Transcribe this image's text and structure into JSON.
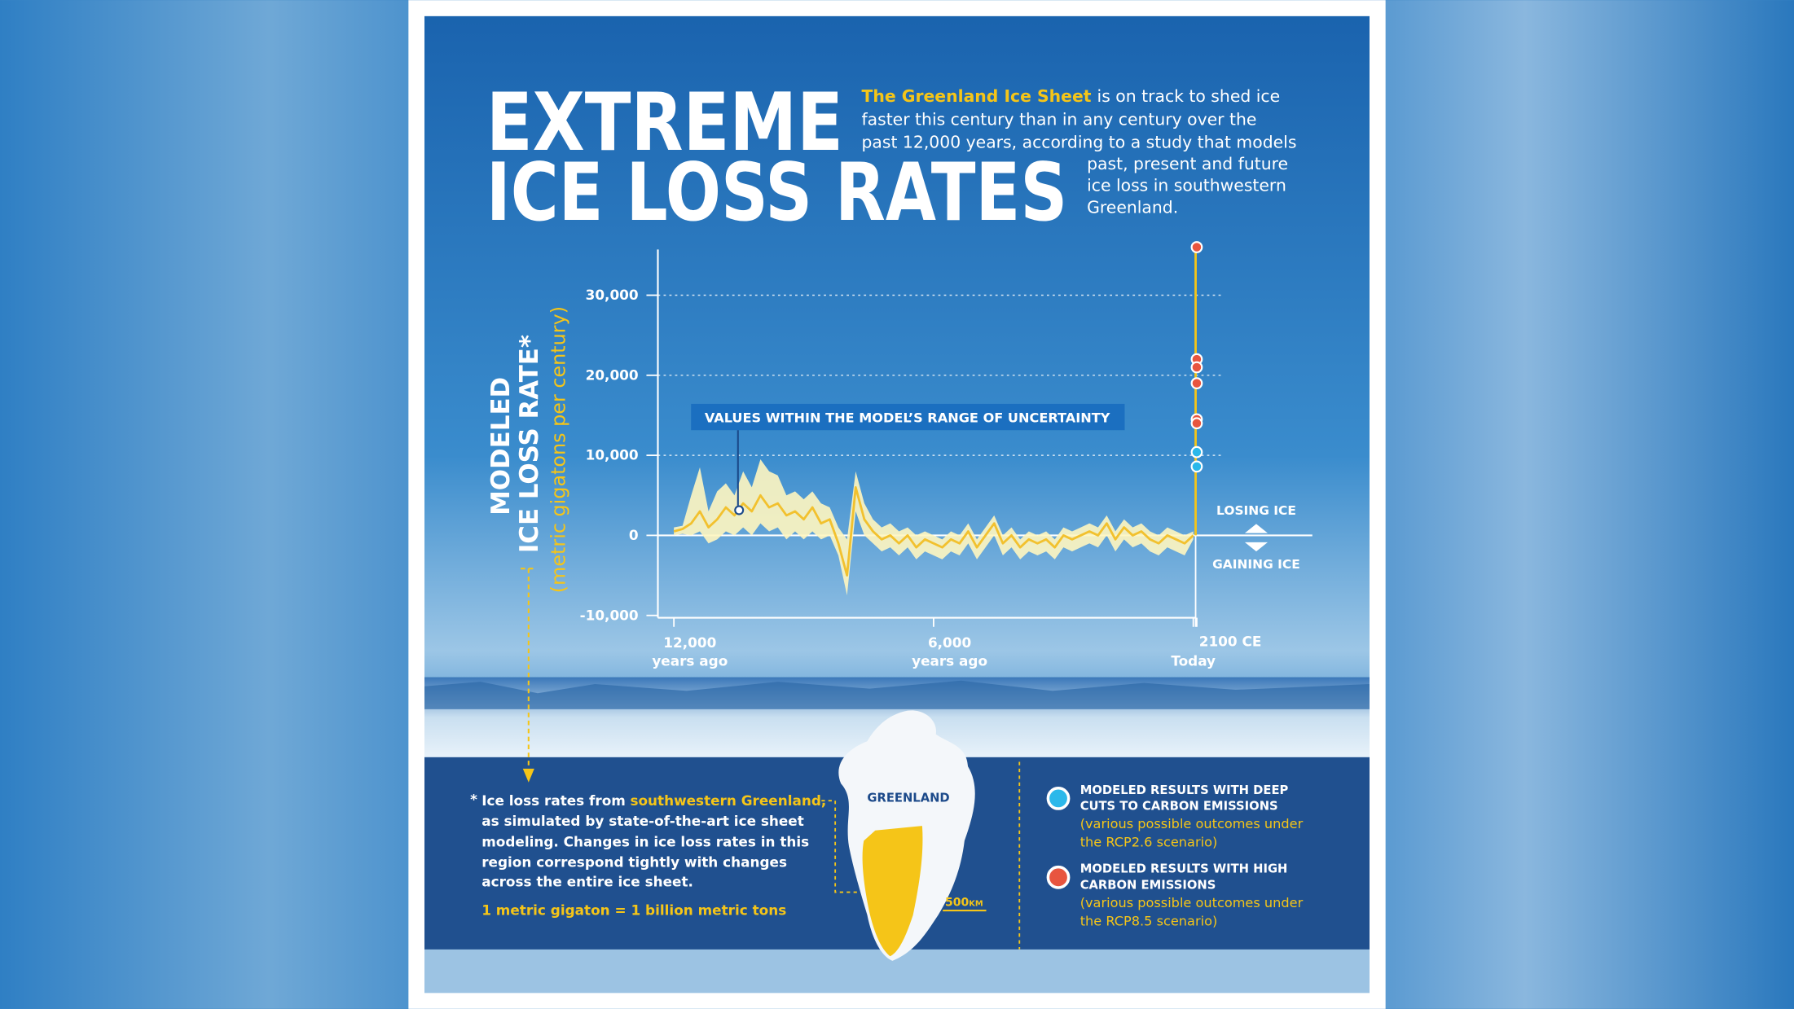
{
  "header": {
    "title_line1": "EXTREME",
    "title_line2": "ICE LOSS RATES",
    "intro_lead": "The Greenland Ice Sheet",
    "intro_lines": [
      "is on track to shed ice",
      "faster this century than in any century over the",
      "past 12,000 years, according to a study that models",
      "past, present and future",
      "ice loss in southwestern",
      "Greenland."
    ]
  },
  "chart_data": {
    "type": "line",
    "y_label": [
      "MODELED",
      "ICE LOSS RATE*"
    ],
    "y_unit": "(metric gigatons per century)",
    "x_unit": "years ago",
    "x": [
      12000,
      11800,
      11600,
      11400,
      11200,
      11000,
      10800,
      10600,
      10400,
      10200,
      10000,
      9800,
      9600,
      9400,
      9200,
      9000,
      8800,
      8600,
      8400,
      8200,
      8000,
      7800,
      7600,
      7400,
      7200,
      7000,
      6800,
      6600,
      6400,
      6200,
      6000,
      5800,
      5600,
      5400,
      5200,
      5000,
      4800,
      4600,
      4400,
      4200,
      4000,
      3800,
      3600,
      3400,
      3200,
      3000,
      2800,
      2600,
      2400,
      2200,
      2000,
      1800,
      1600,
      1400,
      1200,
      1000,
      800,
      600,
      400,
      200,
      0
    ],
    "series": [
      {
        "color": "#f2c12e",
        "values": [
          500,
          800,
          1500,
          3000,
          1000,
          2000,
          3500,
          2500,
          4000,
          3000,
          5000,
          3500,
          4000,
          2500,
          3000,
          2000,
          3500,
          1500,
          2000,
          -1000,
          -5000,
          6000,
          2000,
          500,
          -500,
          0,
          -1000,
          0,
          -1500,
          -500,
          -1000,
          -1500,
          -500,
          -1000,
          500,
          -1500,
          0,
          1500,
          -1000,
          0,
          -1500,
          -500,
          -1000,
          -500,
          -1500,
          0,
          -500,
          0,
          500,
          0,
          1500,
          -500,
          1000,
          0,
          500,
          -500,
          -1000,
          0,
          -500,
          -1000,
          0
        ]
      }
    ],
    "band": {
      "name": "VALUES WITHIN THE MODEL’S RANGE OF UNCERTAINTY",
      "color": "#fff6c0",
      "upper": [
        1000,
        1200,
        5000,
        8500,
        3000,
        5500,
        6500,
        5000,
        8000,
        6000,
        9500,
        8000,
        7500,
        5000,
        5500,
        4500,
        5500,
        4000,
        3500,
        1000,
        -500,
        8000,
        4000,
        2000,
        1000,
        1500,
        500,
        1000,
        0,
        500,
        0,
        -500,
        500,
        0,
        1500,
        -500,
        1000,
        2500,
        0,
        1000,
        -500,
        500,
        0,
        500,
        -500,
        1000,
        500,
        1000,
        1500,
        1000,
        2500,
        500,
        2000,
        1000,
        1500,
        500,
        0,
        1000,
        500,
        0,
        500
      ],
      "lower": [
        0,
        200,
        0,
        500,
        -1000,
        -500,
        500,
        0,
        1000,
        0,
        1500,
        500,
        1000,
        -500,
        500,
        -500,
        500,
        -500,
        0,
        -2500,
        -7500,
        3000,
        0,
        -1000,
        -2000,
        -1500,
        -2500,
        -1500,
        -3000,
        -2000,
        -2500,
        -3000,
        -2000,
        -2500,
        -1000,
        -3000,
        -1500,
        0,
        -2500,
        -1500,
        -3000,
        -2000,
        -2500,
        -2000,
        -3000,
        -1500,
        -2000,
        -1500,
        -1000,
        -1500,
        0,
        -2000,
        -500,
        -1500,
        -1000,
        -2000,
        -2500,
        -1500,
        -2000,
        -2500,
        -500
      ]
    },
    "scenarios": [
      {
        "name": "MODELED RESULTS WITH DEEP CUTS TO CARBON EMISSIONS",
        "note": "(various possible outcomes under the RCP2.6 scenario)",
        "color": "#2bb8ea",
        "x": [
          -80,
          -80
        ],
        "values": [
          10400,
          8600
        ]
      },
      {
        "name": "MODELED RESULTS WITH HIGH CARBON EMISSIONS",
        "note": "(various possible outcomes under the RCP8.5 scenario)",
        "color": "#e8553f",
        "x": [
          -80,
          -80,
          -80,
          -80,
          -80,
          -80
        ],
        "values": [
          36000,
          22000,
          21000,
          19000,
          14500,
          14000
        ]
      }
    ],
    "xlim": [
      12370,
      -80
    ],
    "xticks": [
      {
        "value": 12000,
        "label": "12,000"
      },
      {
        "value": 6000,
        "label": "6,000"
      },
      {
        "value": 0,
        "label": "Today"
      },
      {
        "value": -80,
        "label": "2100 CE"
      }
    ],
    "ylim": [
      -10000,
      36000
    ],
    "yticks": [
      {
        "value": -10000,
        "label": "-10,000"
      },
      0,
      {
        "value": 10000,
        "label": "10,000"
      },
      {
        "value": 20000,
        "label": "20,000"
      },
      {
        "value": 30000,
        "label": "30,000"
      }
    ],
    "grid": true,
    "annotations": {
      "losing": "LOSING ICE",
      "gaining": "GAINING ICE"
    }
  },
  "footnote": {
    "marker": "*",
    "start": "Ice loss rates from",
    "highlight": "southwestern Greenland,",
    "lines": [
      "as simulated by state-of-the-art ice sheet",
      "modeling. Changes in ice loss rates in this",
      "region correspond tightly with changes",
      "across the entire ice sheet."
    ],
    "conversion": "1 metric gigaton = 1 billion metric tons"
  },
  "map": {
    "label": "GREENLAND",
    "scale": "500",
    "scale_unit": "KM"
  }
}
